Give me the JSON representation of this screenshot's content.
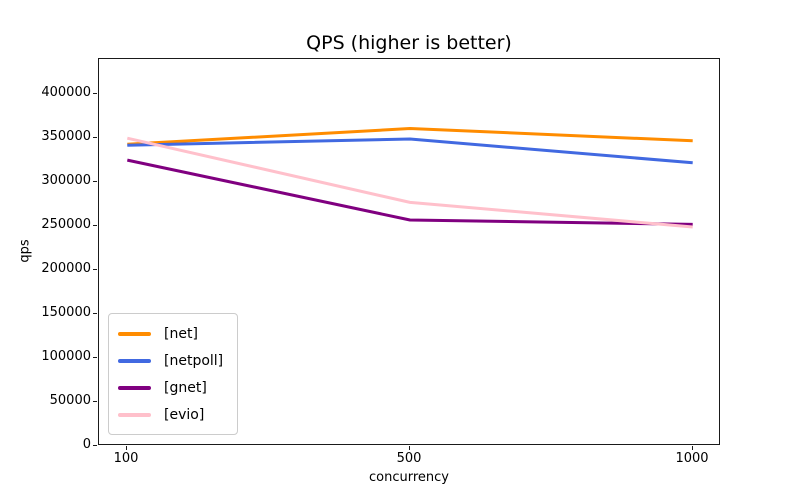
{
  "figure": {
    "background": "#ffffff",
    "spine_color": "#1a1a1a"
  },
  "chart_data": {
    "type": "line",
    "title": "QPS (higher is better)",
    "xlabel": "concurrency",
    "ylabel": "qps",
    "x_axis_type": "categorical",
    "categories": [
      "100",
      "500",
      "1000"
    ],
    "series": [
      {
        "name": "net",
        "label": "[net]",
        "color": "#ff8c00",
        "values": [
          343000,
          361000,
          347000
        ]
      },
      {
        "name": "netpoll",
        "label": "[netpoll]",
        "color": "#4169e1",
        "values": [
          342000,
          349000,
          322000
        ]
      },
      {
        "name": "gnet",
        "label": "[gnet]",
        "color": "#800080",
        "values": [
          325000,
          257000,
          252000
        ]
      },
      {
        "name": "evio",
        "label": "[evio]",
        "color": "#ffc0cb",
        "values": [
          350000,
          277000,
          249000
        ]
      }
    ],
    "ylim": [
      0,
      440000
    ],
    "yticks": [
      0,
      50000,
      100000,
      150000,
      200000,
      250000,
      300000,
      350000,
      400000
    ],
    "grid": false,
    "legend_position": "lower left",
    "line_width": 3
  }
}
